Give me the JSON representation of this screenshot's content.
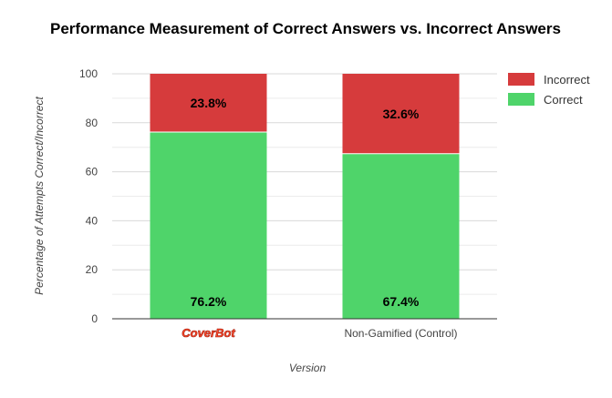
{
  "chart_data": {
    "type": "bar",
    "stacked": true,
    "title": "Performance Measurement of Correct Answers vs. Incorrect Answers",
    "xlabel": "Version",
    "ylabel": "Percentage of Attempts Correct/Incorrect",
    "categories": [
      "CoverBot",
      "Non-Gamified (Control)"
    ],
    "series": [
      {
        "name": "Correct",
        "color": "#4fd46a",
        "values": [
          76.2,
          67.4
        ],
        "labels": [
          "76.2%",
          "67.4%"
        ]
      },
      {
        "name": "Incorrect",
        "color": "#d63b3c",
        "values": [
          23.8,
          32.6
        ],
        "labels": [
          "23.8%",
          "32.6%"
        ]
      }
    ],
    "ylim": [
      0,
      100
    ],
    "yticks": [
      "0",
      "20",
      "40",
      "60",
      "80",
      "100"
    ],
    "grid": true,
    "legend_position": "right",
    "legend_order": [
      "Incorrect",
      "Correct"
    ],
    "logo_category": "CoverBot",
    "logo_color": "#ff4a2a"
  }
}
